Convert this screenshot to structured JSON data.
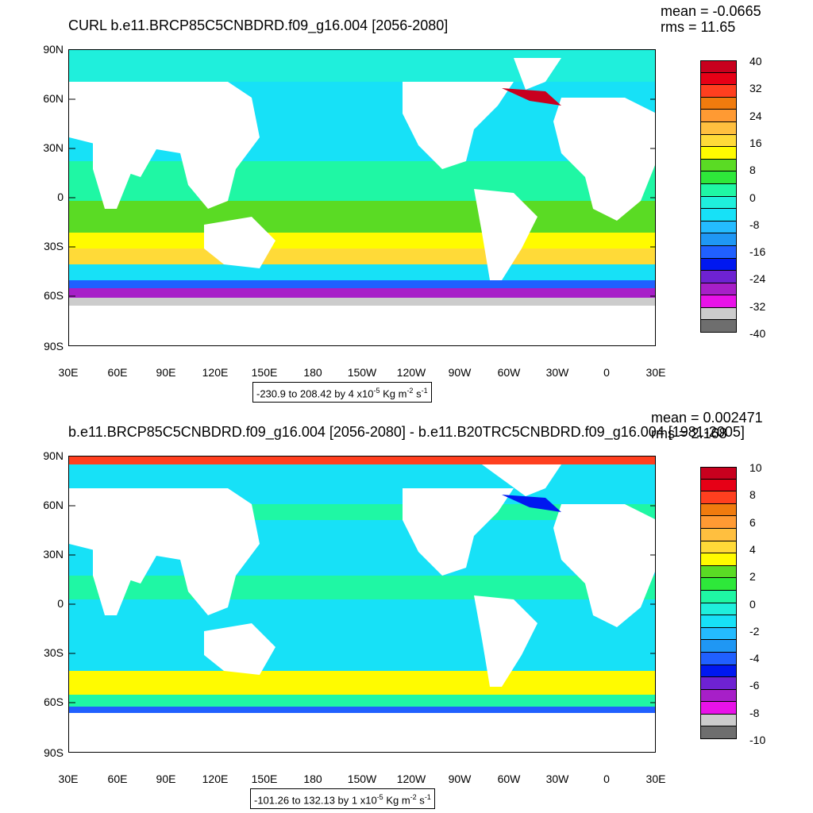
{
  "panels": [
    {
      "title": "CURL b.e11.BRCP85C5CNBDRD.f09_g16.004 [2056-2080]",
      "stats": {
        "mean": "mean = -0.0665",
        "rms": "rms = 11.65"
      },
      "range_label": {
        "text": "-230.9 to 208.42 by 4 x10",
        "exp": "-5",
        "units_a": " Kg m",
        "exp2": "-2",
        "units_b": " s",
        "exp3": "-1"
      },
      "colorbar": {
        "labels": [
          "40",
          "32",
          "24",
          "16",
          "8",
          "0",
          "-8",
          "-16",
          "-24",
          "-32",
          "-40"
        ],
        "colors": [
          "#c8001e",
          "#e60016",
          "#ff3f1f",
          "#f07b0e",
          "#ff9a33",
          "#ffbf3f",
          "#ffda38",
          "#fffb00",
          "#5adb24",
          "#2ee83a",
          "#1ff7a4",
          "#1fefdc",
          "#17e1f7",
          "#24bbff",
          "#1f97f4",
          "#2060ff",
          "#0018f0",
          "#6e22d2",
          "#a71fc8",
          "#e812e8",
          "#cccccc",
          "#6e6e6e"
        ]
      }
    },
    {
      "title": "b.e11.BRCP85C5CNBDRD.f09_g16.004 [2056-2080] - b.e11.B20TRC5CNBDRD.f09_g16.004 [1981-2005]",
      "stats": {
        "mean": "mean = 0.002471",
        "rms": "rms = 2.168"
      },
      "range_label": {
        "text": "-101.26 to 132.13 by 1 x10",
        "exp": "-5",
        "units_a": " Kg m",
        "exp2": "-2",
        "units_b": " s",
        "exp3": "-1"
      },
      "colorbar": {
        "labels": [
          "10",
          "8",
          "6",
          "4",
          "2",
          "0",
          "-2",
          "-4",
          "-6",
          "-8",
          "-10"
        ],
        "colors": [
          "#c8001e",
          "#e60016",
          "#ff3f1f",
          "#f07b0e",
          "#ff9a33",
          "#ffbf3f",
          "#ffda38",
          "#fffb00",
          "#5adb24",
          "#2ee83a",
          "#1ff7a4",
          "#1fefdc",
          "#17e1f7",
          "#24bbff",
          "#1f97f4",
          "#2060ff",
          "#0018f0",
          "#6e22d2",
          "#a71fc8",
          "#e812e8",
          "#cccccc",
          "#6e6e6e"
        ]
      }
    }
  ],
  "axes": {
    "lat_labels": [
      "90N",
      "60N",
      "30N",
      "0",
      "30S",
      "60S",
      "90S"
    ],
    "lon_labels": [
      "30E",
      "60E",
      "90E",
      "120E",
      "150E",
      "180",
      "150W",
      "120W",
      "90W",
      "60W",
      "30W",
      "0",
      "30E"
    ]
  }
}
